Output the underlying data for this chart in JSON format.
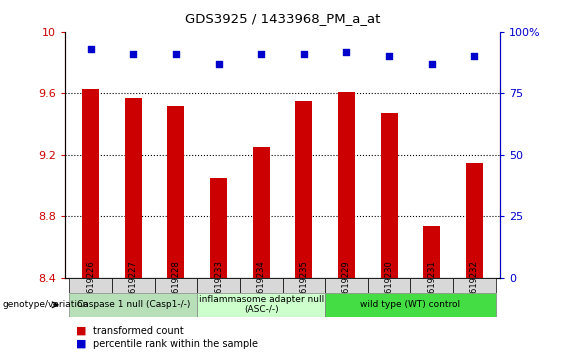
{
  "title": "GDS3925 / 1433968_PM_a_at",
  "samples": [
    "GSM619226",
    "GSM619227",
    "GSM619228",
    "GSM619233",
    "GSM619234",
    "GSM619235",
    "GSM619229",
    "GSM619230",
    "GSM619231",
    "GSM619232"
  ],
  "bar_values": [
    9.63,
    9.57,
    9.52,
    9.05,
    9.25,
    9.55,
    9.61,
    9.47,
    8.74,
    9.15
  ],
  "dot_values": [
    93,
    91,
    91,
    87,
    91,
    91,
    92,
    90,
    87,
    90
  ],
  "bar_color": "#cc0000",
  "dot_color": "#0000cc",
  "ylim_left": [
    8.4,
    10.0
  ],
  "ylim_right": [
    0,
    100
  ],
  "yticks_left": [
    8.4,
    8.8,
    9.2,
    9.6,
    10.0
  ],
  "ytick_labels_left": [
    "8.4",
    "8.8",
    "9.2",
    "9.6",
    "10"
  ],
  "yticks_right": [
    0,
    25,
    50,
    75,
    100
  ],
  "ytick_labels_right": [
    "0",
    "25",
    "50",
    "75",
    "100%"
  ],
  "grid_lines": [
    8.8,
    9.2,
    9.6
  ],
  "groups": [
    {
      "label": "Caspase 1 null (Casp1-/-)",
      "start": 0,
      "end": 3,
      "color": "#b8e0b8"
    },
    {
      "label": "inflammasome adapter null\n(ASC-/-)",
      "start": 3,
      "end": 6,
      "color": "#ccffcc"
    },
    {
      "label": "wild type (WT) control",
      "start": 6,
      "end": 10,
      "color": "#44dd44"
    }
  ],
  "legend_labels": [
    "transformed count",
    "percentile rank within the sample"
  ],
  "genotype_label": "genotype/variation",
  "bar_width": 0.4
}
